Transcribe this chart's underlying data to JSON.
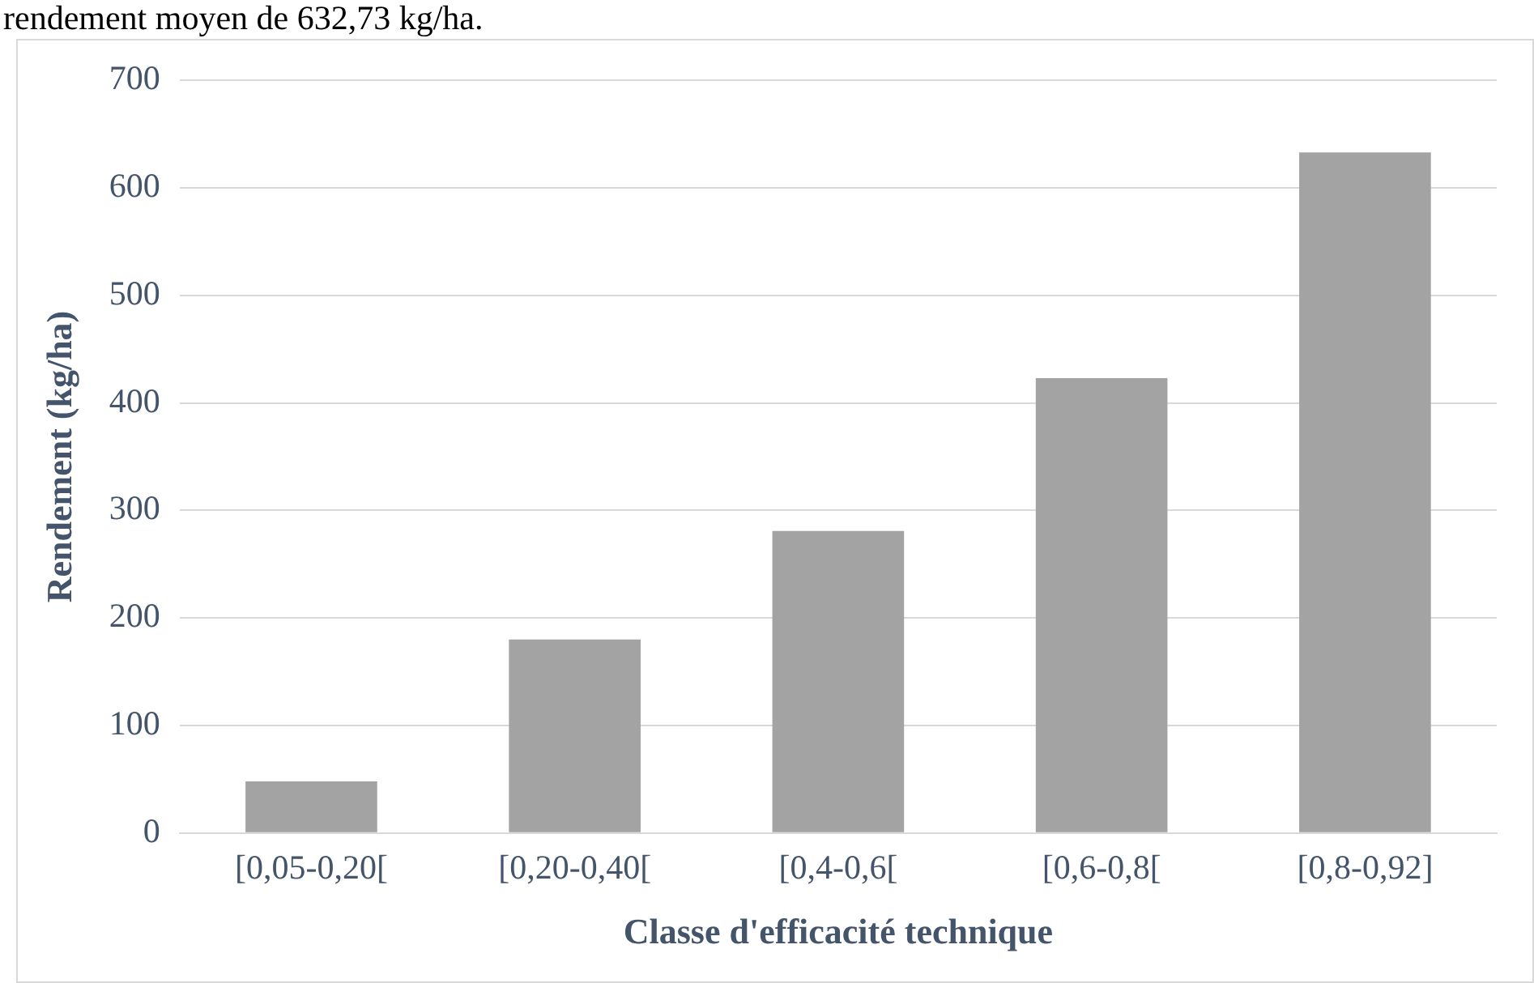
{
  "chart_data": {
    "type": "bar",
    "xlabel": "Classe d'efficacité technique",
    "ylabel": "Rendement (kg/ha)",
    "annotations": [
      "rendement moyen de 632,73 kg/ha."
    ],
    "categories": [
      "[0,05-0,20[",
      "[0,20-0,40[",
      "[0,4-0,6[",
      "[0,6-0,8[",
      "[0,8-0,92]"
    ],
    "values": [
      48,
      180,
      281,
      423,
      633
    ],
    "color": "#a3a3a3",
    "ylim": [
      0,
      700
    ],
    "yticks": [
      0,
      100,
      200,
      300,
      400,
      500,
      600,
      700
    ],
    "grid": "y"
  }
}
